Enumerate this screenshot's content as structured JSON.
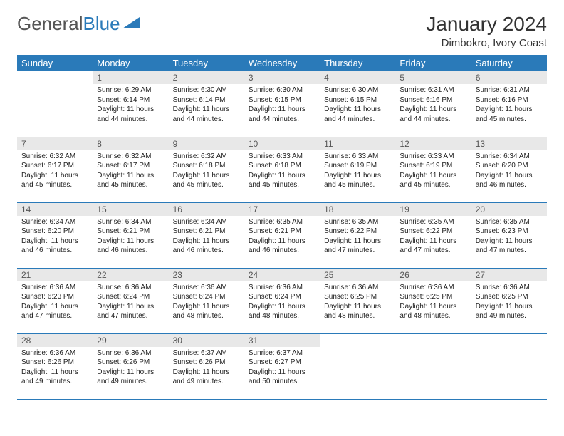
{
  "logo": {
    "text1": "General",
    "text2": "Blue"
  },
  "title": "January 2024",
  "location": "Dimbokro, Ivory Coast",
  "colors": {
    "header_bg": "#2a7ab9",
    "header_text": "#ffffff",
    "daynum_bg": "#e8e8e8",
    "border": "#2a7ab9",
    "background": "#ffffff"
  },
  "day_headers": [
    "Sunday",
    "Monday",
    "Tuesday",
    "Wednesday",
    "Thursday",
    "Friday",
    "Saturday"
  ],
  "weeks": [
    [
      null,
      {
        "n": "1",
        "sr": "6:29 AM",
        "ss": "6:14 PM",
        "dl": "11 hours and 44 minutes."
      },
      {
        "n": "2",
        "sr": "6:30 AM",
        "ss": "6:14 PM",
        "dl": "11 hours and 44 minutes."
      },
      {
        "n": "3",
        "sr": "6:30 AM",
        "ss": "6:15 PM",
        "dl": "11 hours and 44 minutes."
      },
      {
        "n": "4",
        "sr": "6:30 AM",
        "ss": "6:15 PM",
        "dl": "11 hours and 44 minutes."
      },
      {
        "n": "5",
        "sr": "6:31 AM",
        "ss": "6:16 PM",
        "dl": "11 hours and 44 minutes."
      },
      {
        "n": "6",
        "sr": "6:31 AM",
        "ss": "6:16 PM",
        "dl": "11 hours and 45 minutes."
      }
    ],
    [
      {
        "n": "7",
        "sr": "6:32 AM",
        "ss": "6:17 PM",
        "dl": "11 hours and 45 minutes."
      },
      {
        "n": "8",
        "sr": "6:32 AM",
        "ss": "6:17 PM",
        "dl": "11 hours and 45 minutes."
      },
      {
        "n": "9",
        "sr": "6:32 AM",
        "ss": "6:18 PM",
        "dl": "11 hours and 45 minutes."
      },
      {
        "n": "10",
        "sr": "6:33 AM",
        "ss": "6:18 PM",
        "dl": "11 hours and 45 minutes."
      },
      {
        "n": "11",
        "sr": "6:33 AM",
        "ss": "6:19 PM",
        "dl": "11 hours and 45 minutes."
      },
      {
        "n": "12",
        "sr": "6:33 AM",
        "ss": "6:19 PM",
        "dl": "11 hours and 45 minutes."
      },
      {
        "n": "13",
        "sr": "6:34 AM",
        "ss": "6:20 PM",
        "dl": "11 hours and 46 minutes."
      }
    ],
    [
      {
        "n": "14",
        "sr": "6:34 AM",
        "ss": "6:20 PM",
        "dl": "11 hours and 46 minutes."
      },
      {
        "n": "15",
        "sr": "6:34 AM",
        "ss": "6:21 PM",
        "dl": "11 hours and 46 minutes."
      },
      {
        "n": "16",
        "sr": "6:34 AM",
        "ss": "6:21 PM",
        "dl": "11 hours and 46 minutes."
      },
      {
        "n": "17",
        "sr": "6:35 AM",
        "ss": "6:21 PM",
        "dl": "11 hours and 46 minutes."
      },
      {
        "n": "18",
        "sr": "6:35 AM",
        "ss": "6:22 PM",
        "dl": "11 hours and 47 minutes."
      },
      {
        "n": "19",
        "sr": "6:35 AM",
        "ss": "6:22 PM",
        "dl": "11 hours and 47 minutes."
      },
      {
        "n": "20",
        "sr": "6:35 AM",
        "ss": "6:23 PM",
        "dl": "11 hours and 47 minutes."
      }
    ],
    [
      {
        "n": "21",
        "sr": "6:36 AM",
        "ss": "6:23 PM",
        "dl": "11 hours and 47 minutes."
      },
      {
        "n": "22",
        "sr": "6:36 AM",
        "ss": "6:24 PM",
        "dl": "11 hours and 47 minutes."
      },
      {
        "n": "23",
        "sr": "6:36 AM",
        "ss": "6:24 PM",
        "dl": "11 hours and 48 minutes."
      },
      {
        "n": "24",
        "sr": "6:36 AM",
        "ss": "6:24 PM",
        "dl": "11 hours and 48 minutes."
      },
      {
        "n": "25",
        "sr": "6:36 AM",
        "ss": "6:25 PM",
        "dl": "11 hours and 48 minutes."
      },
      {
        "n": "26",
        "sr": "6:36 AM",
        "ss": "6:25 PM",
        "dl": "11 hours and 48 minutes."
      },
      {
        "n": "27",
        "sr": "6:36 AM",
        "ss": "6:25 PM",
        "dl": "11 hours and 49 minutes."
      }
    ],
    [
      {
        "n": "28",
        "sr": "6:36 AM",
        "ss": "6:26 PM",
        "dl": "11 hours and 49 minutes."
      },
      {
        "n": "29",
        "sr": "6:36 AM",
        "ss": "6:26 PM",
        "dl": "11 hours and 49 minutes."
      },
      {
        "n": "30",
        "sr": "6:37 AM",
        "ss": "6:26 PM",
        "dl": "11 hours and 49 minutes."
      },
      {
        "n": "31",
        "sr": "6:37 AM",
        "ss": "6:27 PM",
        "dl": "11 hours and 50 minutes."
      },
      null,
      null,
      null
    ]
  ],
  "labels": {
    "sunrise": "Sunrise:",
    "sunset": "Sunset:",
    "daylight": "Daylight:"
  }
}
